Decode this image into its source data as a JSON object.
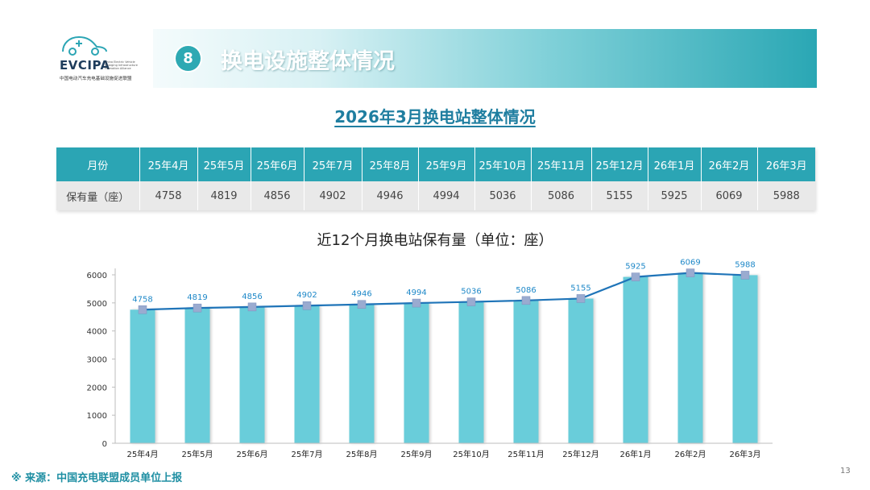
{
  "logo": {
    "mark": "EVCIPA",
    "en": "China Electric Vehicle Charging Infrastructure Promotion Alliance",
    "cn": "中国电动汽车充电基础设施促进联盟"
  },
  "banner": {
    "number": "8",
    "title": "换电设施整体情况"
  },
  "subtitle": "2026年3月换电站整体情况",
  "table": {
    "row_header_month": "月份",
    "row_header_count": "保有量（座）",
    "months": [
      "25年4月",
      "25年5月",
      "25年6月",
      "25年7月",
      "25年8月",
      "25年9月",
      "25年10月",
      "25年11月",
      "25年12月",
      "26年1月",
      "26年2月",
      "26年3月"
    ],
    "values": [
      "4758",
      "4819",
      "4856",
      "4902",
      "4946",
      "4994",
      "5036",
      "5086",
      "5155",
      "5925",
      "6069",
      "5988"
    ]
  },
  "chart_data": {
    "type": "bar",
    "title": "近12个月换电站保有量（单位：座）",
    "categories": [
      "25年4月",
      "25年5月",
      "25年6月",
      "25年7月",
      "25年8月",
      "25年9月",
      "25年10月",
      "25年11月",
      "25年12月",
      "26年1月",
      "26年2月",
      "26年3月"
    ],
    "series": [
      {
        "type": "bar",
        "values": [
          4758,
          4819,
          4856,
          4902,
          4946,
          4994,
          5036,
          5086,
          5155,
          5925,
          6069,
          5988
        ]
      },
      {
        "type": "line",
        "values": [
          4758,
          4819,
          4856,
          4902,
          4946,
          4994,
          5036,
          5086,
          5155,
          5925,
          6069,
          5988
        ]
      }
    ],
    "ylim": [
      0,
      6000
    ],
    "yticks": [
      0,
      1000,
      2000,
      3000,
      4000,
      5000,
      6000
    ],
    "data_labels": true,
    "grid": false,
    "colors": {
      "bar": "#69cdda",
      "line": "#1f74b8",
      "marker": "#9aabd0",
      "label": "#1e88c8"
    }
  },
  "source": "※  来源：中国充电联盟成员单位上报",
  "page_number": "13"
}
